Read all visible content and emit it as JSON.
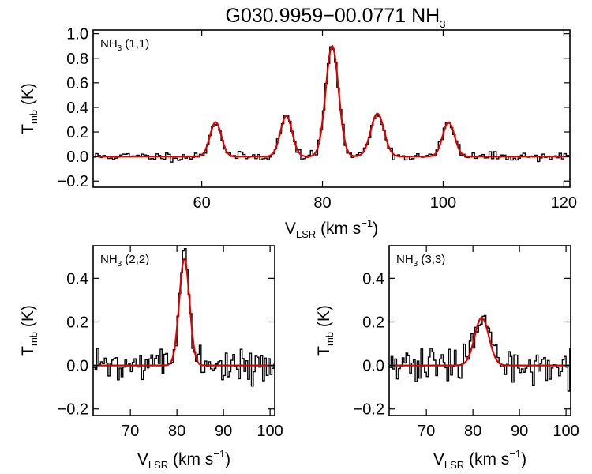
{
  "chart_data": {
    "type": "line",
    "title": {
      "text": "G030.9959−00.0771 NH",
      "sub": "3"
    },
    "colors": {
      "observed": "#000000",
      "fit": "#e00000"
    },
    "panels": [
      {
        "id": "p11",
        "label": {
          "main": "NH",
          "sub": "3",
          "tail": " (1,1)"
        },
        "xlim": [
          42,
          121
        ],
        "ylim": [
          -0.25,
          1.03
        ],
        "xticks": [
          60,
          80,
          100,
          120
        ],
        "yticks": [
          -0.2,
          0.0,
          0.2,
          0.4,
          0.6,
          0.8,
          1.0
        ],
        "xtick_labels": [
          "60",
          "80",
          "100",
          "120"
        ],
        "ytick_labels": [
          "−0.2",
          "0.0",
          "0.2",
          "0.4",
          "0.6",
          "0.8",
          "1.0"
        ],
        "xlabel": {
          "main": "V",
          "sub": "LSR",
          "tail": " (km s",
          "sup": "−1",
          "close": ")"
        },
        "ylabel": {
          "main": "T",
          "sub": "mb",
          "tail": " (K)"
        },
        "noise": 0.018,
        "seed": 11,
        "components": [
          {
            "center": 62.3,
            "amplitude": 0.28,
            "fwhm": 2.2
          },
          {
            "center": 74.0,
            "amplitude": 0.33,
            "fwhm": 2.3
          },
          {
            "center": 81.6,
            "amplitude": 0.9,
            "fwhm": 2.5
          },
          {
            "center": 89.1,
            "amplitude": 0.35,
            "fwhm": 2.6
          },
          {
            "center": 100.9,
            "amplitude": 0.28,
            "fwhm": 2.3
          }
        ]
      },
      {
        "id": "p22",
        "label": {
          "main": "NH",
          "sub": "3",
          "tail": " (2,2)"
        },
        "xlim": [
          62,
          101
        ],
        "ylim": [
          -0.23,
          0.55
        ],
        "xticks": [
          70,
          80,
          90,
          100
        ],
        "yticks": [
          -0.2,
          0.0,
          0.2,
          0.4
        ],
        "xtick_labels": [
          "70",
          "80",
          "90",
          "100"
        ],
        "ytick_labels": [
          "−0.2",
          "0.0",
          "0.2",
          "0.4"
        ],
        "xlabel": {
          "main": "V",
          "sub": "LSR",
          "tail": " (km s",
          "sup": "−1",
          "close": ")"
        },
        "ylabel": {
          "main": "T",
          "sub": "mb",
          "tail": " (K)"
        },
        "noise": 0.035,
        "seed": 22,
        "components": [
          {
            "center": 81.6,
            "amplitude": 0.49,
            "fwhm": 2.6
          }
        ]
      },
      {
        "id": "p33",
        "label": {
          "main": "NH",
          "sub": "3",
          "tail": " (3,3)"
        },
        "xlim": [
          62,
          101
        ],
        "ylim": [
          -0.23,
          0.55
        ],
        "xticks": [
          70,
          80,
          90,
          100
        ],
        "yticks": [
          -0.2,
          0.0,
          0.2,
          0.4
        ],
        "xtick_labels": [
          "70",
          "80",
          "90",
          "100"
        ],
        "ytick_labels": [
          "−0.2",
          "0.0",
          "0.2",
          "0.4"
        ],
        "xlabel": {
          "main": "V",
          "sub": "LSR",
          "tail": " (km s",
          "sup": "−1",
          "close": ")"
        },
        "ylabel": {
          "main": "T",
          "sub": "mb",
          "tail": " (K)"
        },
        "noise": 0.04,
        "seed": 33,
        "components": [
          {
            "center": 81.9,
            "amplitude": 0.22,
            "fwhm": 3.6
          }
        ]
      }
    ]
  }
}
